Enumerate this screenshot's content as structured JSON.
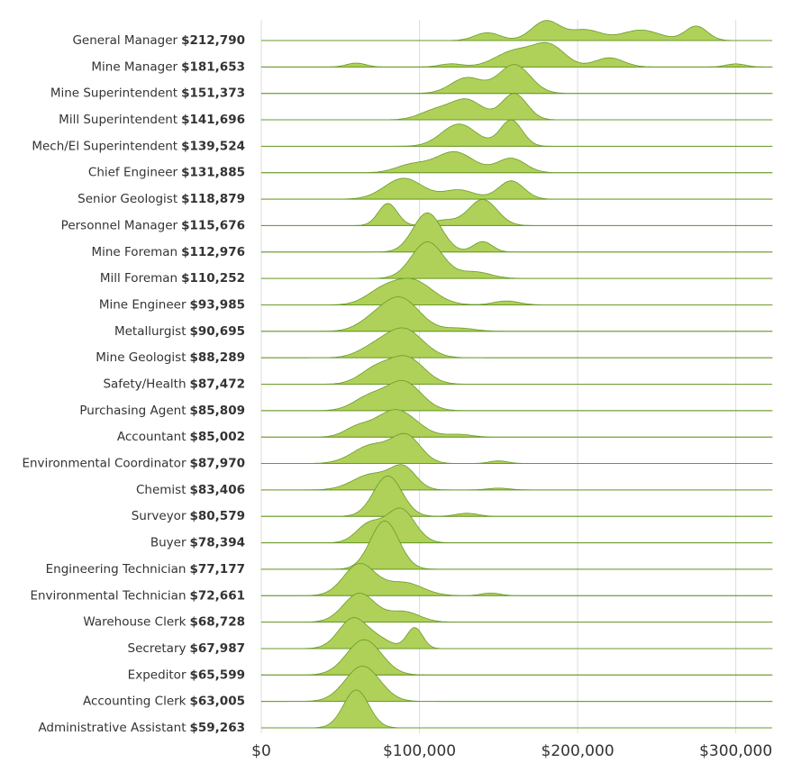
{
  "chart_data": {
    "type": "ridgeline",
    "categories": [
      "General Manager",
      "Mine Manager",
      "Mine Superintendent",
      "Mill Superintendent",
      "Mech/El Superintendent",
      "Chief Engineer",
      "Senior Geologist",
      "Personnel Manager",
      "Mine Foreman",
      "Mill Foreman",
      "Mine Engineer",
      "Metallurgist",
      "Mine Geologist",
      "Safety/Health",
      "Purchasing Agent",
      "Accountant",
      "Environmental Coordinator",
      "Chemist",
      "Surveyor",
      "Buyer",
      "Engineering Technician",
      "Environmental Technician",
      "Warehouse Clerk",
      "Secretary",
      "Expeditor",
      "Accounting Clerk",
      "Administrative Assistant"
    ],
    "salary_labels": [
      "$212,790",
      "$181,653",
      "$151,373",
      "$141,696",
      "$139,524",
      "$131,885",
      "$118,879",
      "$115,676",
      "$112,976",
      "$110,252",
      "$93,985",
      "$90,695",
      "$88,289",
      "$87,472",
      "$85,809",
      "$85,002",
      "$87,970",
      "$83,406",
      "$80,579",
      "$78,394",
      "$77,177",
      "$72,661",
      "$68,728",
      "$67,987",
      "$65,599",
      "$63,005",
      "$59,263"
    ],
    "ridges": [
      [
        [
          143000,
          0.3,
          8000
        ],
        [
          180000,
          0.75,
          9000
        ],
        [
          205000,
          0.4,
          10000
        ],
        [
          240000,
          0.4,
          12000
        ],
        [
          275000,
          0.55,
          7000
        ]
      ],
      [
        [
          60000,
          0.15,
          6000
        ],
        [
          120000,
          0.12,
          7000
        ],
        [
          160000,
          0.6,
          12000
        ],
        [
          182000,
          0.8,
          10000
        ],
        [
          220000,
          0.35,
          9000
        ],
        [
          300000,
          0.12,
          6000
        ]
      ],
      [
        [
          130000,
          0.6,
          10000
        ],
        [
          160000,
          1.1,
          10000
        ]
      ],
      [
        [
          110000,
          0.35,
          10000
        ],
        [
          130000,
          0.75,
          10000
        ],
        [
          160000,
          1.0,
          8000
        ]
      ],
      [
        [
          125000,
          0.85,
          11000
        ],
        [
          158000,
          1.0,
          7000
        ]
      ],
      [
        [
          95000,
          0.3,
          10000
        ],
        [
          122000,
          0.8,
          12000
        ],
        [
          158000,
          0.55,
          9000
        ]
      ],
      [
        [
          90000,
          0.8,
          12000
        ],
        [
          125000,
          0.35,
          10000
        ],
        [
          158000,
          0.7,
          8000
        ]
      ],
      [
        [
          80000,
          0.85,
          6000
        ],
        [
          115000,
          0.2,
          8000
        ],
        [
          140000,
          1.0,
          9000
        ]
      ],
      [
        [
          105000,
          1.5,
          9000
        ],
        [
          140000,
          0.4,
          6000
        ]
      ],
      [
        [
          105000,
          1.4,
          10000
        ],
        [
          135000,
          0.25,
          10000
        ]
      ],
      [
        [
          75000,
          0.4,
          10000
        ],
        [
          95000,
          0.95,
          13000
        ],
        [
          155000,
          0.15,
          8000
        ]
      ],
      [
        [
          70000,
          0.3,
          10000
        ],
        [
          88000,
          1.25,
          12000
        ],
        [
          125000,
          0.12,
          10000
        ]
      ],
      [
        [
          70000,
          0.3,
          10000
        ],
        [
          90000,
          1.1,
          12000
        ]
      ],
      [
        [
          72000,
          0.55,
          10000
        ],
        [
          92000,
          1.0,
          11000
        ]
      ],
      [
        [
          68000,
          0.5,
          10000
        ],
        [
          90000,
          1.1,
          11000
        ]
      ],
      [
        [
          60000,
          0.3,
          8000
        ],
        [
          85000,
          1.05,
          13000
        ],
        [
          125000,
          0.1,
          8000
        ]
      ],
      [
        [
          70000,
          0.7,
          12000
        ],
        [
          92000,
          1.0,
          9000
        ],
        [
          150000,
          0.1,
          6000
        ]
      ],
      [
        [
          70000,
          0.6,
          12000
        ],
        [
          90000,
          0.8,
          8000
        ],
        [
          150000,
          0.07,
          7000
        ]
      ],
      [
        [
          80000,
          1.55,
          9000
        ],
        [
          130000,
          0.12,
          7000
        ]
      ],
      [
        [
          68000,
          0.7,
          8000
        ],
        [
          88000,
          1.3,
          9000
        ]
      ],
      [
        [
          78000,
          1.85,
          9000
        ]
      ],
      [
        [
          62000,
          1.2,
          10000
        ],
        [
          90000,
          0.5,
          12000
        ],
        [
          145000,
          0.1,
          6000
        ]
      ],
      [
        [
          62000,
          1.1,
          10000
        ],
        [
          90000,
          0.4,
          10000
        ]
      ],
      [
        [
          58000,
          1.15,
          9000
        ],
        [
          75000,
          0.3,
          8000
        ],
        [
          97000,
          0.8,
          5000
        ]
      ],
      [
        [
          65000,
          1.35,
          11000
        ]
      ],
      [
        [
          64000,
          1.35,
          11000
        ]
      ],
      [
        [
          60000,
          1.45,
          8000
        ]
      ]
    ],
    "color": "#afd159",
    "line_color": "#6a9a2a",
    "xlim": [
      0,
      323000
    ],
    "xticks": [
      {
        "value": 0,
        "label": "$0"
      },
      {
        "value": 100000,
        "label": "$100,000"
      },
      {
        "value": 200000,
        "label": "$200,000"
      },
      {
        "value": 300000,
        "label": "$300,000"
      }
    ],
    "grid": true
  }
}
